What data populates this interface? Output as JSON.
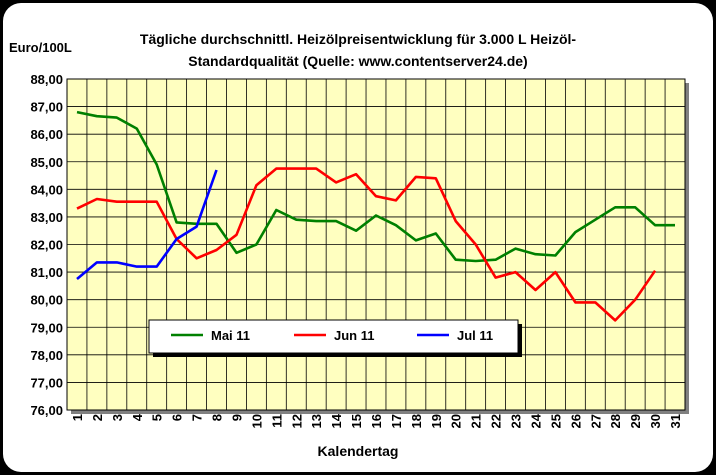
{
  "chart_data": {
    "type": "line",
    "title": "Tägliche durchschnittl. Heizölpreisentwicklung für 3.000 L Heizöl-",
    "subtitle": "Standardqualität (Quelle: www.contentserver24.de)",
    "ylabel": "Euro/100L",
    "xlabel": "Kalendertag",
    "ylim": [
      76,
      88
    ],
    "ytick_step": 1,
    "ytick_labels": [
      "76,00",
      "77,00",
      "78,00",
      "79,00",
      "80,00",
      "81,00",
      "82,00",
      "83,00",
      "84,00",
      "85,00",
      "86,00",
      "87,00",
      "88,00"
    ],
    "x": [
      1,
      2,
      3,
      4,
      5,
      6,
      7,
      8,
      9,
      10,
      11,
      12,
      13,
      14,
      15,
      16,
      17,
      18,
      19,
      20,
      21,
      22,
      23,
      24,
      25,
      26,
      27,
      28,
      29,
      30,
      31
    ],
    "grid": true,
    "plot_background": "#ffffc0",
    "legend_position": "bottom-center inside plot",
    "series": [
      {
        "name": "Mai 11",
        "color": "#008000",
        "x": [
          1,
          2,
          3,
          4,
          5,
          6,
          7,
          8,
          9,
          10,
          11,
          12,
          13,
          14,
          15,
          16,
          17,
          18,
          19,
          20,
          21,
          22,
          23,
          24,
          25,
          26,
          27,
          28,
          29,
          30,
          31
        ],
        "values": [
          86.8,
          86.65,
          86.6,
          86.2,
          84.9,
          82.8,
          82.75,
          82.75,
          81.7,
          82.0,
          83.25,
          82.9,
          82.85,
          82.85,
          82.5,
          83.05,
          82.7,
          82.15,
          82.4,
          81.45,
          81.4,
          81.45,
          81.85,
          81.65,
          81.6,
          82.45,
          82.9,
          83.35,
          83.35,
          82.7,
          82.7
        ]
      },
      {
        "name": "Jun 11",
        "color": "#ff0000",
        "x": [
          1,
          2,
          3,
          4,
          5,
          6,
          7,
          8,
          9,
          10,
          11,
          12,
          13,
          14,
          15,
          16,
          17,
          18,
          19,
          20,
          21,
          22,
          23,
          24,
          25,
          26,
          27,
          28,
          29,
          30
        ],
        "values": [
          83.3,
          83.65,
          83.55,
          83.55,
          83.55,
          82.2,
          81.5,
          81.8,
          82.35,
          84.15,
          84.75,
          84.75,
          84.75,
          84.25,
          84.55,
          83.75,
          83.6,
          84.45,
          84.4,
          82.85,
          82.0,
          80.8,
          81.0,
          80.35,
          81.0,
          79.9,
          79.9,
          79.25,
          80.0,
          81.05
        ]
      },
      {
        "name": "Jul 11",
        "color": "#0000ff",
        "x": [
          1,
          2,
          3,
          4,
          5,
          6,
          7,
          8
        ],
        "values": [
          80.75,
          81.35,
          81.35,
          81.2,
          81.2,
          82.2,
          82.65,
          84.7
        ]
      }
    ]
  }
}
